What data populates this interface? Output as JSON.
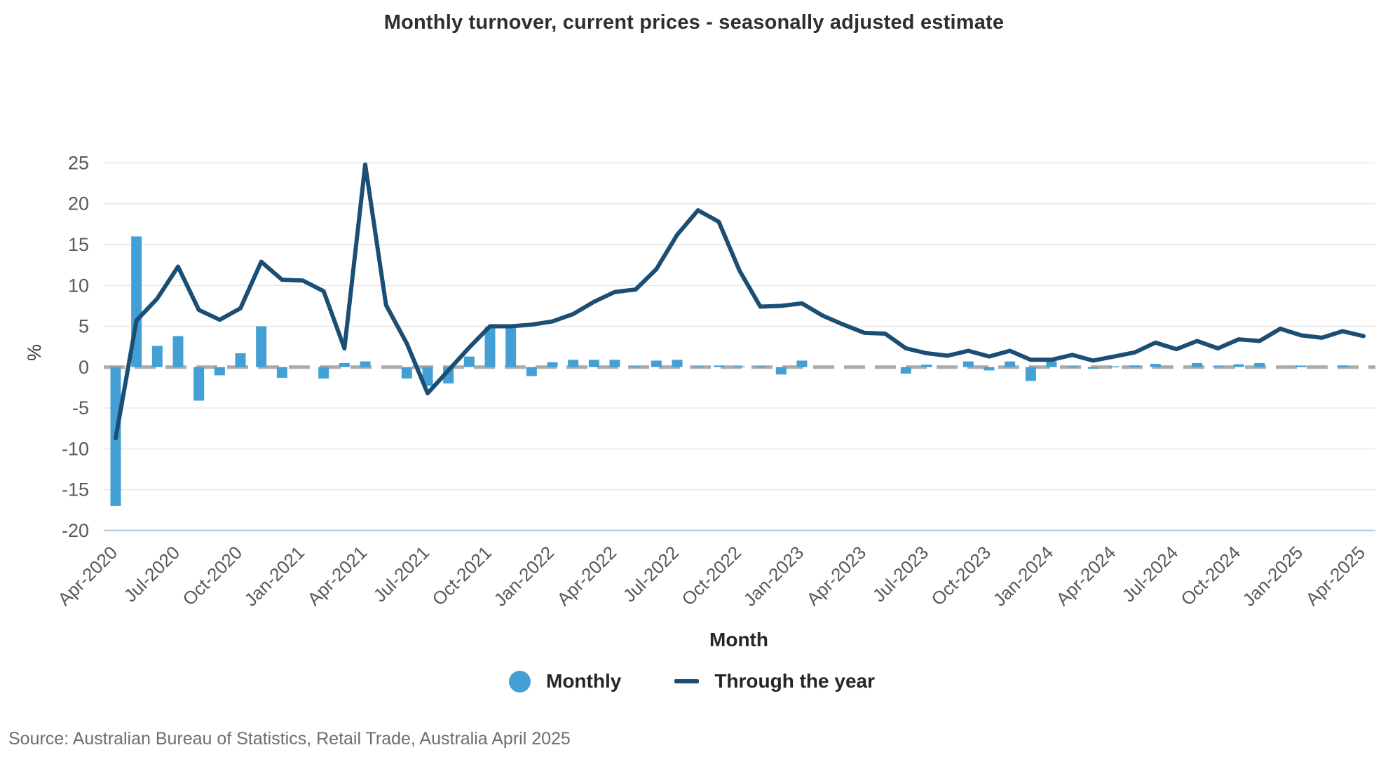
{
  "title": "Monthly turnover, current prices - seasonally adjusted estimate",
  "source": "Source: Australian Bureau of Statistics, Retail Trade, Australia April 2025",
  "legend": {
    "position": "bottom",
    "items": [
      {
        "label": "Monthly",
        "marker": "circle",
        "color": "#44A0D4"
      },
      {
        "label": "Through the year",
        "marker": "line",
        "color": "#1B4E74"
      }
    ]
  },
  "colors": {
    "bar": "#44A0D4",
    "line": "#1B4E74",
    "zero_line": "#ababab",
    "grid": "#e6e6e6",
    "axis_line": "#b9cde3",
    "tick_text": "#595959",
    "title_text": "#2e2e2e"
  },
  "chart_data": {
    "type": "bar+line",
    "title": "Monthly turnover, current prices - seasonally adjusted estimate",
    "xlabel": "Month",
    "ylabel": "%",
    "ylim": [
      -20,
      25
    ],
    "y_ticks": [
      25,
      20,
      15,
      10,
      5,
      0,
      -5,
      -10,
      -15,
      -20
    ],
    "x_tick_every": 3,
    "grid": true,
    "legend_position": "bottom",
    "categories": [
      "Apr-2020",
      "May-2020",
      "Jun-2020",
      "Jul-2020",
      "Aug-2020",
      "Sep-2020",
      "Oct-2020",
      "Nov-2020",
      "Dec-2020",
      "Jan-2021",
      "Feb-2021",
      "Mar-2021",
      "Apr-2021",
      "May-2021",
      "Jun-2021",
      "Jul-2021",
      "Aug-2021",
      "Sep-2021",
      "Oct-2021",
      "Nov-2021",
      "Dec-2021",
      "Jan-2022",
      "Feb-2022",
      "Mar-2022",
      "Apr-2022",
      "May-2022",
      "Jun-2022",
      "Jul-2022",
      "Aug-2022",
      "Sep-2022",
      "Oct-2022",
      "Nov-2022",
      "Dec-2022",
      "Jan-2023",
      "Feb-2023",
      "Mar-2023",
      "Apr-2023",
      "May-2023",
      "Jun-2023",
      "Jul-2023",
      "Aug-2023",
      "Sep-2023",
      "Oct-2023",
      "Nov-2023",
      "Dec-2023",
      "Jan-2024",
      "Feb-2024",
      "Mar-2024",
      "Apr-2024",
      "May-2024",
      "Jun-2024",
      "Jul-2024",
      "Aug-2024",
      "Sep-2024",
      "Oct-2024",
      "Nov-2024",
      "Dec-2024",
      "Jan-2025",
      "Feb-2025",
      "Mar-2025",
      "Apr-2025"
    ],
    "series": [
      {
        "name": "Monthly",
        "type": "bar",
        "values": [
          -17.0,
          16.0,
          2.6,
          3.8,
          -4.1,
          -1.0,
          1.7,
          5.0,
          -1.3,
          0.0,
          -1.4,
          0.5,
          0.7,
          0.0,
          -1.4,
          -2.3,
          -2.0,
          1.3,
          4.9,
          4.9,
          -1.1,
          0.6,
          0.9,
          0.9,
          0.9,
          0.1,
          0.8,
          0.9,
          0.1,
          0.2,
          0.1,
          0.1,
          -0.9,
          0.8,
          0.0,
          0.0,
          0.0,
          0.0,
          -0.8,
          0.3,
          0.0,
          0.7,
          -0.4,
          0.7,
          -1.7,
          0.7,
          0.1,
          -0.2,
          0.1,
          0.2,
          0.4,
          0.0,
          0.5,
          0.15,
          0.35,
          0.5,
          0.0,
          0.2,
          0.0,
          0.2,
          0.0
        ]
      },
      {
        "name": "Through the year",
        "type": "line",
        "values": [
          -8.7,
          5.7,
          8.4,
          12.3,
          7.0,
          5.8,
          7.2,
          12.9,
          10.7,
          10.6,
          9.3,
          2.3,
          24.8,
          7.6,
          2.9,
          -3.2,
          -0.4,
          2.4,
          5.0,
          5.0,
          5.2,
          5.6,
          6.5,
          8.0,
          9.2,
          9.5,
          12.0,
          16.2,
          19.2,
          17.8,
          11.8,
          7.4,
          7.5,
          7.8,
          6.3,
          5.2,
          4.2,
          4.1,
          2.3,
          1.7,
          1.4,
          2.0,
          1.3,
          2.0,
          0.9,
          0.9,
          1.5,
          0.8,
          1.3,
          1.8,
          3.0,
          2.2,
          3.2,
          2.3,
          3.4,
          3.2,
          4.7,
          3.9,
          3.6,
          4.4,
          3.8
        ]
      }
    ]
  }
}
